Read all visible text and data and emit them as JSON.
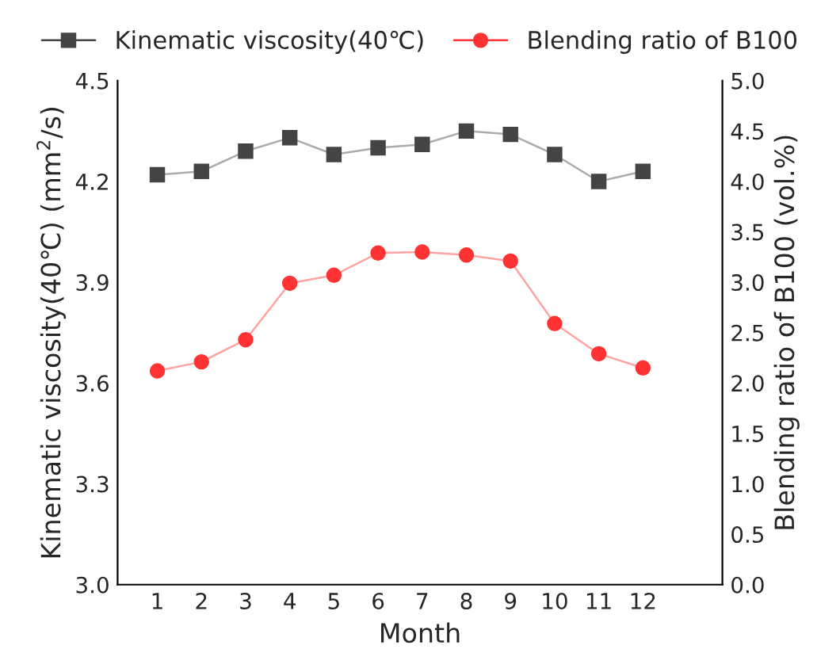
{
  "chart_data": {
    "type": "line",
    "xlabel": "Month",
    "ylabel": "Kinematic viscosity(40℃) (mm$^{2}$/s)",
    "y2label": "Blending ratio of B100 (vol.%)",
    "categories": [
      "1",
      "2",
      "3",
      "4",
      "5",
      "6",
      "7",
      "8",
      "9",
      "10",
      "11",
      "12"
    ],
    "series": [
      {
        "name": "Kinematic viscosity(40℃)",
        "color": "#444444",
        "marker": "square",
        "values": [
          4.22,
          4.23,
          4.29,
          4.33,
          4.28,
          4.3,
          4.31,
          4.35,
          4.34,
          4.28,
          4.2,
          4.23
        ]
      },
      {
        "name": "Blending ratio of B100",
        "color": "#ff3333",
        "marker": "circle",
        "axis": "y2",
        "values": [
          2.12,
          2.21,
          2.43,
          2.99,
          3.07,
          3.29,
          3.3,
          3.27,
          3.21,
          2.59,
          2.29,
          2.15
        ]
      }
    ],
    "ylim": [
      3.0,
      4.5
    ],
    "yticks": [
      {
        "value": 3,
        "label": "3.0"
      },
      3.3,
      3.6,
      3.9,
      4.2,
      4.5
    ],
    "y2lim": [
      0.0,
      5.0
    ],
    "y2ticks": [
      {
        "value": 0,
        "label": "0.0"
      },
      0.5,
      {
        "value": 1,
        "label": "1.0"
      },
      1.5,
      {
        "value": 2,
        "label": "2.0"
      },
      2.5,
      {
        "value": 3,
        "label": "3.0"
      },
      3.5,
      {
        "value": 4,
        "label": "4.0"
      },
      4.5,
      {
        "value": 5,
        "label": "5.0"
      }
    ],
    "grid": false,
    "legend": "top"
  }
}
